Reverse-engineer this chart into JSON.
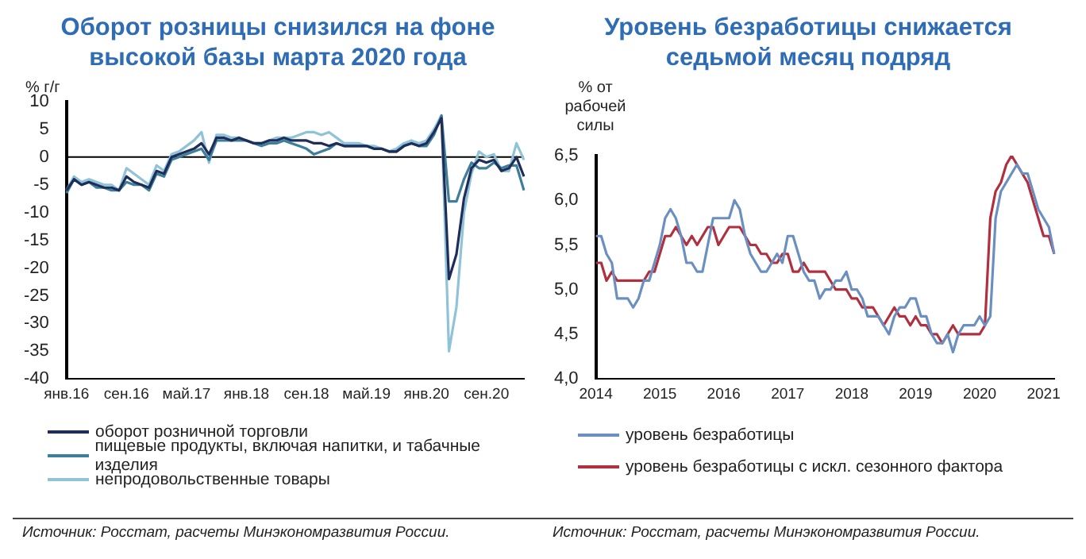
{
  "chart_data": [
    {
      "type": "line",
      "title": "Оборот розницы снизился на фоне высокой базы марта 2020 года",
      "ylabel": "% г/г",
      "categories": [
        "янв.16",
        null,
        null,
        null,
        null,
        null,
        null,
        null,
        "сен.16",
        null,
        null,
        null,
        null,
        null,
        null,
        null,
        "май.17",
        null,
        null,
        null,
        null,
        null,
        null,
        null,
        "янв.18",
        null,
        null,
        null,
        null,
        null,
        null,
        null,
        "сен.18",
        null,
        null,
        null,
        null,
        null,
        null,
        null,
        "май.19",
        null,
        null,
        null,
        null,
        null,
        null,
        null,
        "янв.20",
        null,
        null,
        null,
        null,
        null,
        null,
        null,
        "сен.20",
        null,
        null,
        null,
        null,
        null
      ],
      "series": [
        {
          "name": "оборот розничной торговли",
          "color": "#1f2d5a",
          "values": [
            -6,
            -4,
            -5,
            -4.5,
            -5,
            -5.5,
            -5.5,
            -6,
            -3.5,
            -4.5,
            -5,
            -5.5,
            -2.5,
            -3,
            0,
            0.5,
            1,
            1.5,
            2.5,
            0.5,
            3.5,
            3.5,
            3,
            3.5,
            3,
            2.5,
            2.5,
            3,
            3,
            3.5,
            3,
            3,
            3,
            2.5,
            2.5,
            2,
            2.5,
            2,
            2,
            2,
            2,
            1.5,
            1.5,
            1,
            1,
            2,
            2.5,
            2,
            2.5,
            4.5,
            7,
            -22,
            -17.5,
            -7.5,
            -2,
            -0.5,
            -1,
            -0.5,
            -2.5,
            -2,
            0,
            -3.5
          ]
        },
        {
          "name": "пищевые продукты, включая напитки, и табачные изделия",
          "color": "#3d7f9a",
          "values": [
            -6.5,
            -4,
            -5,
            -4.5,
            -5.5,
            -5.5,
            -6,
            -6,
            -4.5,
            -5,
            -5,
            -6,
            -3,
            -3.5,
            -0.5,
            0,
            0.5,
            1,
            1.5,
            -0.5,
            3,
            3,
            3,
            3,
            3,
            2.5,
            2,
            2.5,
            2.5,
            3,
            2.5,
            2,
            1.5,
            0.5,
            1,
            1.5,
            2.5,
            2,
            2,
            2,
            2,
            1.5,
            1.5,
            1,
            1,
            2,
            2.5,
            2,
            2,
            4,
            7.5,
            -8,
            -8,
            -4,
            -1,
            -2,
            -2,
            -1,
            -2,
            -1.5,
            -1.5,
            -6
          ]
        },
        {
          "name": "непродовольственные товары",
          "color": "#8fc3d8",
          "values": [
            -6,
            -3.5,
            -4.5,
            -4,
            -4.5,
            -5,
            -5,
            -6,
            -2,
            -3,
            -4,
            -5,
            -1.5,
            -2.5,
            0.5,
            1,
            2,
            3,
            4.5,
            -1,
            4,
            4,
            3.5,
            3.5,
            3,
            2.5,
            2.5,
            3,
            3.5,
            3.5,
            3.5,
            4,
            4.5,
            4.5,
            4,
            4.5,
            3.5,
            2.5,
            2.5,
            2.5,
            2,
            2,
            1.5,
            1,
            1.5,
            2.5,
            3,
            2.5,
            3,
            5,
            7.5,
            -35,
            -27,
            -10,
            -3,
            1,
            0,
            0.5,
            -2.5,
            -2.5,
            2.5,
            -0.5
          ]
        }
      ],
      "ylim": [
        -40,
        10
      ],
      "yticks": [
        -40,
        -35,
        -30,
        -25,
        -20,
        -15,
        -10,
        -5,
        0,
        5,
        10
      ],
      "marker": "none",
      "legend": "bottom",
      "annotations": [
        "Источник: Росстат, расчеты Минэкономразвития России."
      ]
    },
    {
      "type": "line",
      "title": "Уровень безработицы снижается седьмой месяц подряд",
      "ylabel": "% от рабочей силы",
      "categories": [
        "2014",
        null,
        null,
        null,
        null,
        null,
        null,
        null,
        null,
        null,
        null,
        null,
        "2015",
        null,
        null,
        null,
        null,
        null,
        null,
        null,
        null,
        null,
        null,
        null,
        "2016",
        null,
        null,
        null,
        null,
        null,
        null,
        null,
        null,
        null,
        null,
        null,
        "2017",
        null,
        null,
        null,
        null,
        null,
        null,
        null,
        null,
        null,
        null,
        null,
        "2018",
        null,
        null,
        null,
        null,
        null,
        null,
        null,
        null,
        null,
        null,
        null,
        "2019",
        null,
        null,
        null,
        null,
        null,
        null,
        null,
        null,
        null,
        null,
        null,
        "2020",
        null,
        null,
        null,
        null,
        null,
        null,
        null,
        null,
        null,
        null,
        null,
        "2021",
        null,
        null
      ],
      "series": [
        {
          "name": "уровень безработицы",
          "color": "#6b8fc0",
          "values": [
            5.6,
            5.6,
            5.4,
            5.3,
            4.9,
            4.9,
            4.9,
            4.8,
            4.9,
            5.1,
            5.1,
            5.3,
            5.5,
            5.8,
            5.9,
            5.8,
            5.6,
            5.3,
            5.3,
            5.2,
            5.2,
            5.5,
            5.8,
            5.8,
            5.8,
            5.8,
            6.0,
            5.9,
            5.6,
            5.4,
            5.3,
            5.2,
            5.2,
            5.3,
            5.4,
            5.3,
            5.6,
            5.6,
            5.4,
            5.2,
            5.1,
            5.1,
            4.9,
            5.0,
            5.0,
            5.1,
            5.1,
            5.2,
            5.0,
            5.0,
            4.9,
            4.7,
            4.7,
            4.7,
            4.6,
            4.5,
            4.7,
            4.8,
            4.8,
            4.9,
            4.9,
            4.7,
            4.7,
            4.5,
            4.4,
            4.4,
            4.5,
            4.3,
            4.5,
            4.6,
            4.6,
            4.6,
            4.7,
            4.6,
            4.7,
            5.8,
            6.1,
            6.2,
            6.3,
            6.4,
            6.3,
            6.3,
            6.1,
            5.9,
            5.8,
            5.7,
            5.4
          ]
        },
        {
          "name": "уровень безработицы с искл. сезонного фактора",
          "color": "#b03040",
          "values": [
            5.3,
            5.3,
            5.1,
            5.2,
            5.1,
            5.1,
            5.1,
            5.1,
            5.1,
            5.1,
            5.2,
            5.2,
            5.4,
            5.6,
            5.6,
            5.7,
            5.6,
            5.5,
            5.6,
            5.5,
            5.6,
            5.7,
            5.7,
            5.5,
            5.6,
            5.7,
            5.7,
            5.7,
            5.6,
            5.5,
            5.5,
            5.4,
            5.4,
            5.3,
            5.3,
            5.4,
            5.4,
            5.2,
            5.2,
            5.3,
            5.2,
            5.2,
            5.2,
            5.2,
            5.1,
            5.0,
            5.0,
            5.0,
            4.9,
            4.9,
            4.8,
            4.8,
            4.8,
            4.7,
            4.6,
            4.7,
            4.8,
            4.7,
            4.7,
            4.6,
            4.7,
            4.6,
            4.6,
            4.5,
            4.5,
            4.4,
            4.5,
            4.6,
            4.5,
            4.5,
            4.5,
            4.5,
            4.5,
            4.6,
            5.8,
            6.1,
            6.2,
            6.4,
            6.5,
            6.4,
            6.3,
            6.2,
            6.0,
            5.8,
            5.6,
            5.6,
            5.4
          ]
        }
      ],
      "ylim": [
        4,
        6.5
      ],
      "yticks": [
        {
          "value": 4,
          "label": "4,0"
        },
        {
          "value": 4.5,
          "label": "4,5"
        },
        {
          "value": 5,
          "label": "5,0"
        },
        {
          "value": 5.5,
          "label": "5,5"
        },
        {
          "value": 6,
          "label": "6,0"
        },
        {
          "value": 6.5,
          "label": "6,5"
        }
      ],
      "marker": "none",
      "legend": "bottom",
      "annotations": [
        "Источник: Росстат, расчеты Минэкономразвития России."
      ]
    }
  ]
}
